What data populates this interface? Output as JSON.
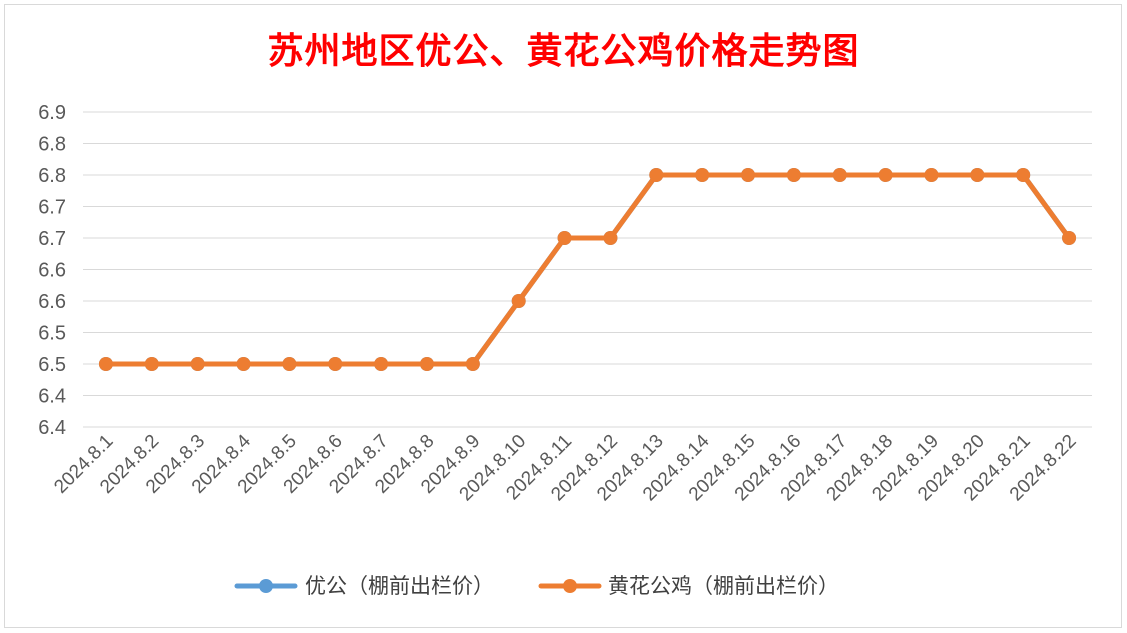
{
  "chart_data": {
    "type": "line",
    "title": "苏州地区优公、黄花公鸡价格走势图",
    "categories": [
      "2024.8.1",
      "2024.8.2",
      "2024.8.3",
      "2024.8.4",
      "2024.8.5",
      "2024.8.6",
      "2024.8.7",
      "2024.8.8",
      "2024.8.9",
      "2024.8.10",
      "2024.8.11",
      "2024.8.12",
      "2024.8.13",
      "2024.8.14",
      "2024.8.15",
      "2024.8.16",
      "2024.8.17",
      "2024.8.18",
      "2024.8.19",
      "2024.8.20",
      "2024.8.21",
      "2024.8.22"
    ],
    "y_ticks": [
      "6.4",
      "6.4",
      "6.5",
      "6.5",
      "6.6",
      "6.6",
      "6.7",
      "6.7",
      "6.8",
      "6.8",
      "6.9"
    ],
    "ylim": [
      6.4,
      6.9
    ],
    "grid": true,
    "legend_position": "bottom",
    "series": [
      {
        "name": "优公（棚前出栏价）",
        "color": "#5b9bd5",
        "values": [
          6.5,
          6.5,
          6.5,
          6.5,
          6.5,
          6.5,
          6.5,
          6.5,
          6.5,
          6.6,
          6.7,
          6.7,
          6.8,
          6.8,
          6.8,
          6.8,
          6.8,
          6.8,
          6.8,
          6.8,
          6.8,
          6.7
        ]
      },
      {
        "name": "黄花公鸡（棚前出栏价）",
        "color": "#ed7d31",
        "values": [
          6.5,
          6.5,
          6.5,
          6.5,
          6.5,
          6.5,
          6.5,
          6.5,
          6.5,
          6.6,
          6.7,
          6.7,
          6.8,
          6.8,
          6.8,
          6.8,
          6.8,
          6.8,
          6.8,
          6.8,
          6.8,
          6.7
        ]
      }
    ]
  }
}
